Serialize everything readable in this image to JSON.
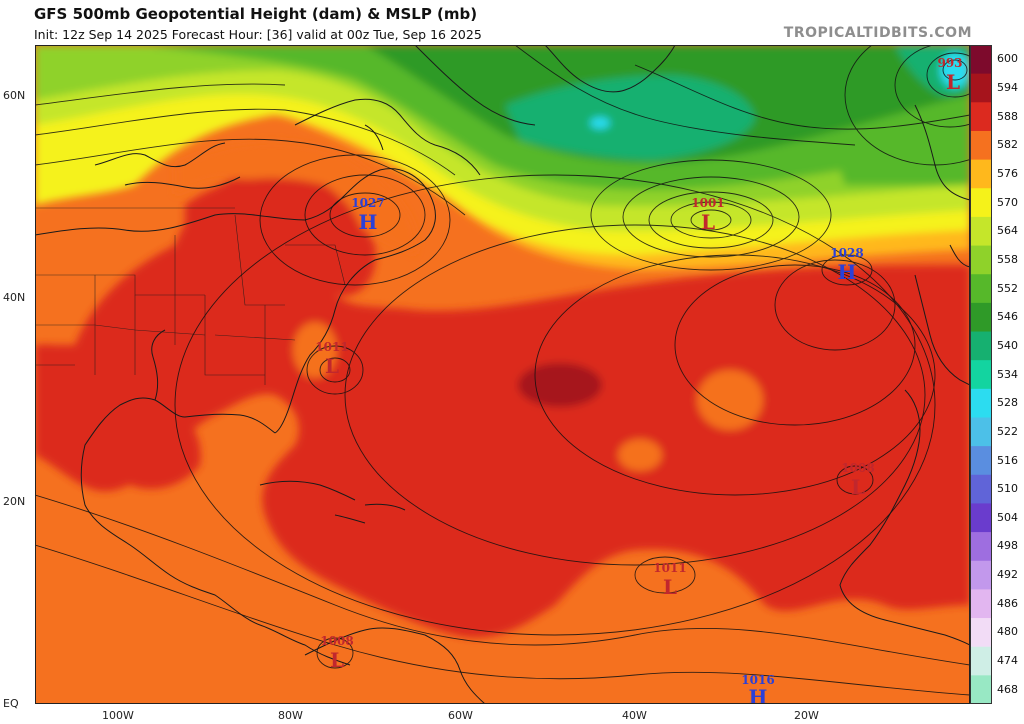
{
  "header": {
    "title": "GFS 500mb Geopotential Height (dam) & MSLP (mb)",
    "subtitle": "Init: 12z Sep 14 2025   Forecast Hour: [36]   valid at 00z Tue, Sep 16 2025",
    "brand": "TROPICALTIDBITS.COM"
  },
  "axes": {
    "lat_labels": [
      "60N",
      "40N",
      "20N",
      "EQ"
    ],
    "lon_labels": [
      "100W",
      "80W",
      "60W",
      "40W",
      "20W"
    ]
  },
  "colorbar": {
    "labels": [
      "600",
      "594",
      "588",
      "582",
      "576",
      "570",
      "564",
      "558",
      "552",
      "546",
      "540",
      "534",
      "528",
      "522",
      "516",
      "510",
      "504",
      "498",
      "492",
      "486",
      "480",
      "474",
      "468"
    ],
    "colors": [
      "#7d0a2c",
      "#a6141c",
      "#dc2a1f",
      "#f5711f",
      "#ffb81c",
      "#f5f21a",
      "#c5e62a",
      "#8fd22a",
      "#56b82a",
      "#2f9a28",
      "#16b070",
      "#13d4a0",
      "#2cdcf0",
      "#4cc0e8",
      "#5a8ee0",
      "#6064d8",
      "#6a3ccd",
      "#9e6ee0",
      "#c298ec",
      "#e2b6f0",
      "#f2dcf6",
      "#cfeee6",
      "#98e8c4"
    ]
  },
  "pressure_systems": [
    {
      "type": "H",
      "value": "1027"
    },
    {
      "type": "L",
      "value": "1011"
    },
    {
      "type": "L",
      "value": "1001"
    },
    {
      "type": "H",
      "value": "1028"
    },
    {
      "type": "L",
      "value": "993"
    },
    {
      "type": "L",
      "value": "1008"
    },
    {
      "type": "L",
      "value": "1011"
    },
    {
      "type": "L",
      "value": "1008"
    },
    {
      "type": "H",
      "value": "1016"
    }
  ]
}
